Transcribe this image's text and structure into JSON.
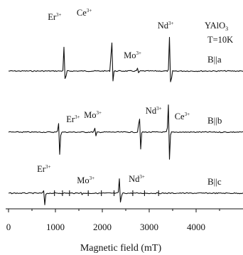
{
  "chart_data": {
    "type": "line",
    "xlabel": "Magnetic field (mT)",
    "xlim": [
      0,
      5000
    ],
    "x_ticks": [
      0,
      1000,
      2000,
      3000,
      4000
    ],
    "y_axis_shown": false,
    "grid": false,
    "annotations": [
      {
        "text": "YAlO3",
        "base": "YAlO",
        "sub": "3"
      },
      {
        "text": "T=10K"
      }
    ],
    "series": [
      {
        "name": "B||a",
        "lines": [
          {
            "ion": "Er",
            "sup": "3+",
            "field": 1200,
            "pos": 55,
            "neg": 28
          },
          {
            "ion": "Ce",
            "sup": "3+",
            "field": 2210,
            "pos": 88,
            "neg": 22
          },
          {
            "ion": "Mo",
            "sup": "3+",
            "field": 2760,
            "pos": 5,
            "neg": 4
          },
          {
            "ion": "Nd",
            "sup": "3+",
            "field": 3450,
            "pos": 78,
            "neg": 40
          }
        ]
      },
      {
        "name": "B||b",
        "lines": [
          {
            "ion": "Er",
            "sup": "3+",
            "field": 1080,
            "pos": 18,
            "neg": 45
          },
          {
            "ion": "Mo",
            "sup": "3+",
            "field": 1850,
            "pos": 8,
            "neg": 8
          },
          {
            "ion": "Nd",
            "sup": "3+",
            "field": 2800,
            "pos": 45,
            "neg": 40
          },
          {
            "ion": "Ce",
            "sup": "3+",
            "field": 3420,
            "pos": 55,
            "neg": 55
          }
        ]
      },
      {
        "name": "B||c",
        "lines": [
          {
            "ion": "Er",
            "sup": "3+",
            "field": 760,
            "pos": 5,
            "neg": 24
          },
          {
            "ion": "Mo",
            "sup": "3+",
            "field": 1550,
            "pos": 4,
            "neg": 4
          },
          {
            "ion": "Nd",
            "sup": "3+",
            "field": 2380,
            "pos": 30,
            "neg": 24
          }
        ]
      }
    ]
  }
}
